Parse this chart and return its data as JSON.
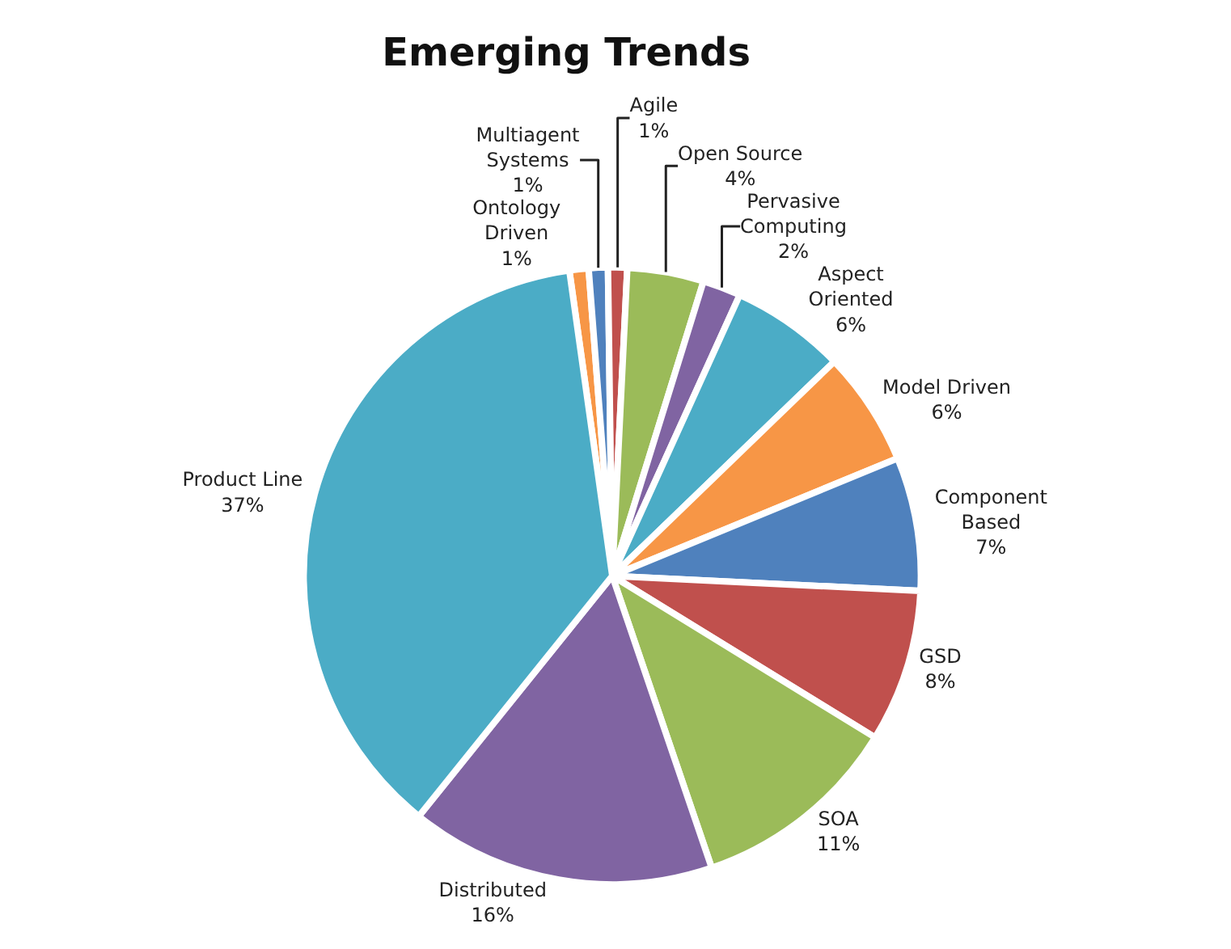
{
  "chart_data": {
    "type": "pie",
    "title": "Emerging Trends",
    "categories": [
      "Ontology Driven",
      "Multiagent Systems",
      "Agile",
      "Open Source",
      "Pervasive Computing",
      "Aspect Oriented",
      "Model Driven",
      "Component Based",
      "GSD",
      "SOA",
      "Distributed",
      "Product Line"
    ],
    "values": [
      1,
      1,
      1,
      4,
      2,
      6,
      6,
      7,
      8,
      11,
      16,
      37
    ],
    "value_labels": [
      "1%",
      "1%",
      "1%",
      "4%",
      "2%",
      "6%",
      "6%",
      "7%",
      "8%",
      "11%",
      "16%",
      "37%"
    ],
    "colors": [
      "#f79646",
      "#4f81bd",
      "#c0504d",
      "#9bbb59",
      "#8064a2",
      "#4bacc6",
      "#f79646",
      "#4f81bd",
      "#c0504d",
      "#9bbb59",
      "#8064a2",
      "#4bacc6"
    ],
    "legend": false
  }
}
